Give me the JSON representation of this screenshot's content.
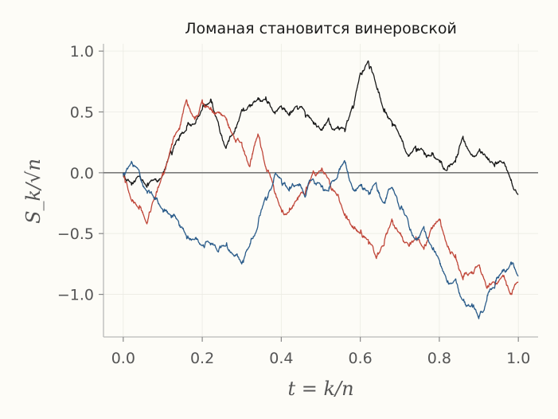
{
  "chart_data": {
    "type": "line",
    "title": "Ломаная становится винеровской",
    "xlabel": "t = k/n",
    "ylabel": "S_k/√n",
    "xlim": [
      -0.05,
      1.05
    ],
    "ylim": [
      -1.35,
      1.06
    ],
    "xticks": [
      0.0,
      0.2,
      0.4,
      0.6,
      0.8,
      1.0
    ],
    "xtick_labels": [
      "0.0",
      "0.2",
      "0.4",
      "0.6",
      "0.8",
      "1.0"
    ],
    "yticks": [
      1.0,
      0.5,
      0.0,
      -0.5,
      -1.0
    ],
    "ytick_labels": [
      "1.0",
      "0.5",
      "0.0",
      "−0.5",
      "−1.0"
    ],
    "grid": true,
    "reference_line_y": 0.0,
    "series": [
      {
        "color": "#1a1a1a",
        "x": [
          0.0,
          0.02,
          0.04,
          0.06,
          0.08,
          0.1,
          0.12,
          0.14,
          0.16,
          0.18,
          0.2,
          0.22,
          0.24,
          0.26,
          0.28,
          0.3,
          0.32,
          0.34,
          0.36,
          0.38,
          0.4,
          0.42,
          0.44,
          0.46,
          0.48,
          0.5,
          0.52,
          0.54,
          0.56,
          0.58,
          0.6,
          0.62,
          0.64,
          0.66,
          0.68,
          0.7,
          0.72,
          0.74,
          0.76,
          0.78,
          0.8,
          0.82,
          0.84,
          0.86,
          0.88,
          0.9,
          0.92,
          0.94,
          0.96,
          0.98,
          1.0
        ],
        "y": [
          0.0,
          -0.08,
          -0.03,
          -0.12,
          -0.05,
          -0.02,
          0.18,
          0.28,
          0.35,
          0.4,
          0.52,
          0.58,
          0.42,
          0.2,
          0.32,
          0.52,
          0.56,
          0.6,
          0.6,
          0.5,
          0.55,
          0.47,
          0.55,
          0.5,
          0.42,
          0.35,
          0.45,
          0.37,
          0.36,
          0.55,
          0.82,
          0.92,
          0.72,
          0.5,
          0.42,
          0.3,
          0.15,
          0.22,
          0.18,
          0.14,
          0.1,
          0.02,
          0.1,
          0.3,
          0.15,
          0.18,
          0.12,
          0.05,
          0.08,
          -0.05,
          -0.18
        ]
      },
      {
        "color": "#c0473a",
        "x": [
          0.0,
          0.02,
          0.04,
          0.06,
          0.08,
          0.1,
          0.12,
          0.14,
          0.16,
          0.18,
          0.2,
          0.22,
          0.24,
          0.26,
          0.28,
          0.3,
          0.32,
          0.34,
          0.36,
          0.38,
          0.4,
          0.42,
          0.44,
          0.46,
          0.48,
          0.5,
          0.52,
          0.54,
          0.56,
          0.58,
          0.6,
          0.62,
          0.64,
          0.66,
          0.68,
          0.7,
          0.72,
          0.74,
          0.76,
          0.78,
          0.8,
          0.82,
          0.84,
          0.86,
          0.88,
          0.9,
          0.92,
          0.94,
          0.96,
          0.98,
          1.0
        ],
        "y": [
          0.0,
          -0.22,
          -0.3,
          -0.42,
          -0.2,
          0.0,
          0.2,
          0.35,
          0.6,
          0.45,
          0.6,
          0.52,
          0.5,
          0.45,
          0.3,
          0.25,
          0.05,
          0.3,
          0.05,
          -0.1,
          -0.3,
          -0.32,
          -0.22,
          -0.18,
          0.0,
          0.02,
          -0.05,
          -0.18,
          -0.35,
          -0.45,
          -0.5,
          -0.55,
          -0.7,
          -0.6,
          -0.38,
          -0.5,
          -0.58,
          -0.55,
          -0.62,
          -0.45,
          -0.38,
          -0.6,
          -0.7,
          -0.88,
          -0.82,
          -0.76,
          -0.95,
          -0.9,
          -0.85,
          -1.0,
          -0.9
        ]
      },
      {
        "color": "#2b5c8a",
        "x": [
          0.0,
          0.02,
          0.04,
          0.06,
          0.08,
          0.1,
          0.12,
          0.14,
          0.16,
          0.18,
          0.2,
          0.22,
          0.24,
          0.26,
          0.28,
          0.3,
          0.32,
          0.34,
          0.36,
          0.38,
          0.4,
          0.42,
          0.44,
          0.46,
          0.48,
          0.5,
          0.52,
          0.54,
          0.56,
          0.58,
          0.6,
          0.62,
          0.64,
          0.66,
          0.68,
          0.7,
          0.72,
          0.74,
          0.76,
          0.78,
          0.8,
          0.82,
          0.84,
          0.86,
          0.88,
          0.9,
          0.92,
          0.94,
          0.96,
          0.98,
          1.0
        ],
        "y": [
          0.0,
          0.08,
          0.02,
          -0.15,
          -0.22,
          -0.3,
          -0.35,
          -0.4,
          -0.52,
          -0.55,
          -0.6,
          -0.58,
          -0.65,
          -0.6,
          -0.68,
          -0.75,
          -0.6,
          -0.45,
          -0.2,
          -0.08,
          -0.05,
          -0.15,
          -0.1,
          -0.2,
          -0.05,
          -0.1,
          -0.15,
          -0.05,
          0.1,
          -0.12,
          -0.1,
          -0.15,
          -0.08,
          -0.25,
          -0.12,
          -0.3,
          -0.38,
          -0.55,
          -0.45,
          -0.6,
          -0.72,
          -0.9,
          -0.88,
          -1.05,
          -1.1,
          -1.2,
          -1.05,
          -0.95,
          -0.8,
          -0.75,
          -0.85
        ]
      }
    ]
  }
}
